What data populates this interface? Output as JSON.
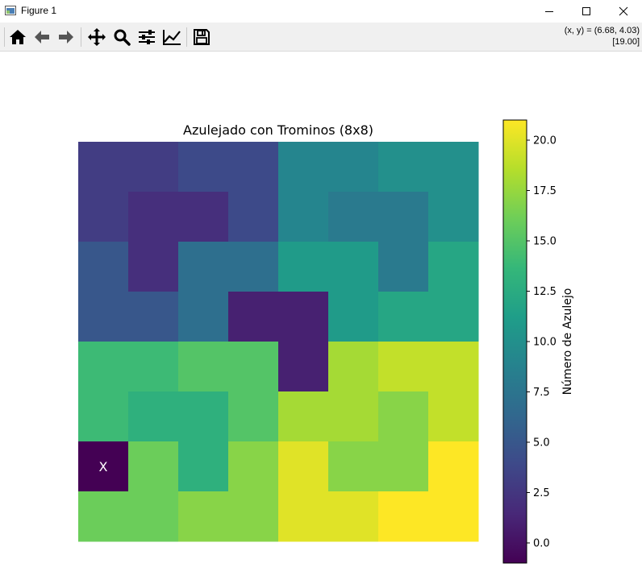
{
  "window": {
    "title": "Figure 1"
  },
  "toolbar": {
    "buttons": [
      {
        "name": "home-button",
        "icon": "home-icon"
      },
      {
        "name": "back-button",
        "icon": "arrow-left-icon"
      },
      {
        "name": "forward-button",
        "icon": "arrow-right-icon"
      },
      {
        "name": "pan-button",
        "icon": "move-icon"
      },
      {
        "name": "zoom-button",
        "icon": "magnifier-icon"
      },
      {
        "name": "subplots-button",
        "icon": "sliders-icon"
      },
      {
        "name": "edit-axes-button",
        "icon": "line-chart-icon"
      },
      {
        "name": "save-button",
        "icon": "floppy-disk-icon"
      }
    ],
    "coords_line1": "(x, y) = (6.68, 4.03)",
    "coords_line2": "[19.00]"
  },
  "chart_data": {
    "type": "heatmap",
    "title": "Azulejado con Trominos (8x8)",
    "rows": 8,
    "cols": 8,
    "values": [
      [
        3,
        3,
        4,
        4,
        9,
        9,
        10,
        10
      ],
      [
        3,
        2,
        2,
        4,
        9,
        8,
        8,
        10
      ],
      [
        5,
        2,
        7,
        7,
        11,
        11,
        8,
        12
      ],
      [
        5,
        5,
        7,
        1,
        1,
        11,
        12,
        12
      ],
      [
        14,
        14,
        15,
        15,
        1,
        18,
        19,
        19
      ],
      [
        14,
        13,
        13,
        15,
        18,
        18,
        17,
        19
      ],
      [
        -1,
        16,
        13,
        17,
        20,
        17,
        17,
        21
      ],
      [
        16,
        16,
        17,
        17,
        20,
        20,
        21,
        21
      ]
    ],
    "vmin": -1,
    "vmax": 21,
    "colormap": "viridis",
    "missing_marker": {
      "row": 6,
      "col": 0,
      "text": "X",
      "color": "#ffffff"
    },
    "colorbar": {
      "label": "Número de Azulejo",
      "ticks": [
        0.0,
        2.5,
        5.0,
        7.5,
        10.0,
        12.5,
        15.0,
        17.5,
        20.0
      ],
      "tick_labels": [
        "0.0",
        "2.5",
        "5.0",
        "7.5",
        "10.0",
        "12.5",
        "15.0",
        "17.5",
        "20.0"
      ]
    }
  }
}
